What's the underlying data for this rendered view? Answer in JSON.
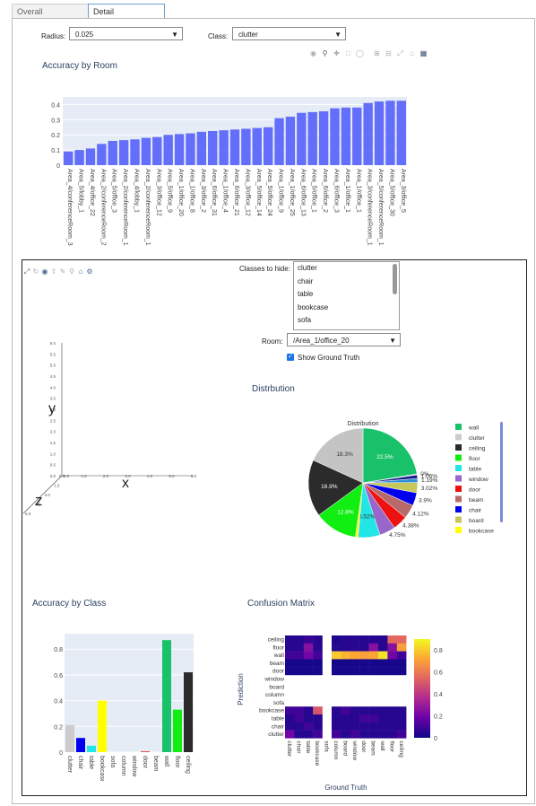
{
  "tabs": [
    {
      "label": "Overall"
    },
    {
      "label": "Detail"
    }
  ],
  "controls": {
    "radius_label": "Radius:",
    "radius_value": "0.025",
    "class_label": "Class:",
    "class_value": "clutter"
  },
  "room_chart": {
    "chart_data": {
      "type": "bar",
      "title": "Accuracy by Room",
      "categories": [
        "Area_4/conferenceRoom_3",
        "Area_5/lobby_1",
        "Area_4/office_22",
        "Area_2/conferenceRoom_2",
        "Area_5/office_3",
        "Area_2/conferenceRoom_1",
        "Area_4/lobby_1",
        "Area_2/conferenceRoom_1",
        "Area_3/office_12",
        "Area_5/office_9",
        "Area_1/office_20",
        "Area_1/office_8",
        "Area_3/office_2",
        "Area_6/office_31",
        "Area_1/office_4",
        "Area_6/office_21",
        "Area_3/office_12",
        "Area_5/office_14",
        "Area_5/office_24",
        "Area_1/office_9",
        "Area_1/office_25",
        "Area_6/office_13",
        "Area_5/office_1",
        "Area_6/office_2",
        "Area_6/office_3",
        "Area_1/office_1",
        "Area_1/office_1",
        "Area_3/conferenceRoom_1",
        "Area_5/conferenceRoom_1",
        "Area_5/office_30",
        "Area_3/office_5"
      ],
      "values": [
        0.09,
        0.1,
        0.11,
        0.14,
        0.16,
        0.165,
        0.17,
        0.18,
        0.185,
        0.2,
        0.205,
        0.21,
        0.22,
        0.225,
        0.23,
        0.235,
        0.24,
        0.245,
        0.25,
        0.31,
        0.32,
        0.345,
        0.35,
        0.355,
        0.375,
        0.38,
        0.38,
        0.41,
        0.42,
        0.425,
        0.425
      ],
      "ylim": [
        0,
        0.45
      ],
      "yticks": [
        "0",
        "0.1",
        "0.2",
        "0.3",
        "0.4"
      ],
      "color": "#636efa"
    }
  },
  "scene3d": {
    "y_ticks": [
      "0.0",
      "0.5",
      "1.0",
      "1.5",
      "2.0",
      "2.5",
      "3.0",
      "3.5",
      "4.0",
      "4.5",
      "5.0",
      "5.5",
      "6.0"
    ],
    "x_ticks": [
      "0.0",
      "0.5",
      "1.0",
      "1.5",
      "2.0",
      "2.5",
      "3.0",
      "3.5",
      "4.0",
      "4.5",
      "5.0",
      "5.5",
      "6.0"
    ],
    "z_ticks": [
      "0.0",
      "0.5",
      "1.0",
      "1.5",
      "2.0",
      "2.5",
      "3.0",
      "3.5",
      "4.0",
      "4.5",
      "5.0",
      "5.5",
      "6.0"
    ],
    "axis_x": "x",
    "axis_y": "y",
    "axis_z": "z"
  },
  "hide_panel": {
    "label": "Classes to hide:",
    "items": [
      "clutter",
      "chair",
      "table",
      "bookcase",
      "sofa"
    ]
  },
  "room_select": {
    "label": "Room:",
    "value": "/Area_1/office_20"
  },
  "ground_truth": {
    "label": "Show Ground Truth",
    "checked": true
  },
  "distribution_title": "Distrbution",
  "pie": {
    "chart_data": {
      "type": "pie",
      "title": "Distribution",
      "slices": [
        {
          "label": "wall",
          "value": 22.5,
          "color": "#19c26a",
          "text": "22.5%"
        },
        {
          "label": "clutter",
          "value": 0.3,
          "color": "#cccccc",
          "text": "0%"
        },
        {
          "label": "ceiling",
          "value": 1.06,
          "color": "#1a1a8c",
          "text": "1.06%"
        },
        {
          "label": "floor",
          "value": 1.19,
          "color": "#2e8fd9",
          "text": "1.19%"
        },
        {
          "label": "table",
          "value": 3.02,
          "color": "#c8c85a",
          "text": "3.02%"
        },
        {
          "label": "window",
          "value": 3.9,
          "color": "#0000ee",
          "text": "3.9%"
        },
        {
          "label": "door",
          "value": 4.12,
          "color": "#b86a6a",
          "text": "4.12%"
        },
        {
          "label": "beam",
          "value": 4.38,
          "color": "#ee1111",
          "text": "4.38%"
        },
        {
          "label": "chair",
          "value": 4.75,
          "color": "#9966cc",
          "text": "4.75%"
        },
        {
          "label": "board",
          "value": 6.52,
          "color": "#22e5e5",
          "text": "6.52%"
        },
        {
          "label": "bookcase",
          "value": 0.8,
          "color": "#ffff00",
          "text": ""
        },
        {
          "label": "sofa",
          "value": 12.8,
          "color": "#11ee11",
          "text": "12.8%"
        },
        {
          "label": "column",
          "value": 16.9,
          "color": "#2b2b2b",
          "text": "16.9%"
        },
        {
          "label": "other",
          "value": 18.3,
          "color": "#c4c4c4",
          "text": "18.3%"
        }
      ],
      "legend": [
        {
          "label": "wall",
          "color": "#19c26a"
        },
        {
          "label": "clutter",
          "color": "#cccccc"
        },
        {
          "label": "ceiling",
          "color": "#2b2b2b"
        },
        {
          "label": "floor",
          "color": "#11ee11"
        },
        {
          "label": "table",
          "color": "#22e5e5"
        },
        {
          "label": "window",
          "color": "#9966cc"
        },
        {
          "label": "door",
          "color": "#ee1111"
        },
        {
          "label": "beam",
          "color": "#b86a6a"
        },
        {
          "label": "chair",
          "color": "#0000ee"
        },
        {
          "label": "board",
          "color": "#c8c85a"
        },
        {
          "label": "bookcase",
          "color": "#ffff00"
        }
      ]
    }
  },
  "class_chart": {
    "chart_data": {
      "type": "bar",
      "title": "Accuracy by Class",
      "categories": [
        "clutter",
        "chair",
        "table",
        "bookcase",
        "sofa",
        "column",
        "window",
        "door",
        "beam",
        "wall",
        "floor",
        "ceiling"
      ],
      "values": [
        0.21,
        0.11,
        0.05,
        0.4,
        0,
        0,
        0,
        0.005,
        0,
        0.87,
        0.33,
        0.62
      ],
      "colors": [
        "#cccccc",
        "#0000ee",
        "#22e5e5",
        "#ffff00",
        "#11ee11",
        "#2b2b2b",
        "#9966cc",
        "#ee1111",
        "#b86a6a",
        "#19c26a",
        "#11ee11",
        "#2b2b2b"
      ],
      "ylim": [
        0,
        0.92
      ],
      "yticks": [
        "0",
        "0.2",
        "0.4",
        "0.6",
        "0.8"
      ]
    }
  },
  "confusion": {
    "chart_data": {
      "type": "heatmap",
      "title": "Confusion Matrix",
      "xlabel": "Ground Truth",
      "ylabel": "Prediction",
      "x": [
        "clutter",
        "chair",
        "table",
        "bookcase",
        "sofa",
        "column",
        "board",
        "window",
        "door",
        "beam",
        "wall",
        "floor",
        "ceiling"
      ],
      "y": [
        "ceiling",
        "floor",
        "wall",
        "beam",
        "door",
        "window",
        "board",
        "column",
        "sofa",
        "bookcase",
        "table",
        "chair",
        "clutter"
      ],
      "z": [
        [
          0.05,
          0.05,
          0.08,
          0.05,
          null,
          0.03,
          0.05,
          0.05,
          0.05,
          0.05,
          0.05,
          0.55,
          0.55
        ],
        [
          0.05,
          0.05,
          0.25,
          0.05,
          null,
          0.05,
          0.05,
          0.05,
          0.05,
          0.25,
          0.05,
          0.25,
          0.7
        ],
        [
          0.1,
          0.1,
          0.2,
          0.1,
          null,
          0.8,
          0.75,
          0.72,
          0.7,
          0.72,
          0.85,
          0.2,
          0.1
        ],
        [
          0.02,
          0.02,
          0.02,
          0.02,
          null,
          0.02,
          0.02,
          0.02,
          0.02,
          0.02,
          0.02,
          0.02,
          0.02
        ],
        [
          0.02,
          0.02,
          0.02,
          0.02,
          null,
          0.02,
          0.02,
          0.02,
          0.02,
          0.02,
          0.02,
          0.02,
          0.02
        ],
        [
          null,
          null,
          null,
          null,
          null,
          null,
          null,
          null,
          null,
          null,
          null,
          null,
          null
        ],
        [
          null,
          null,
          null,
          null,
          null,
          null,
          null,
          null,
          null,
          null,
          null,
          null,
          null
        ],
        [
          null,
          null,
          null,
          null,
          null,
          null,
          null,
          null,
          null,
          null,
          null,
          null,
          null
        ],
        [
          null,
          null,
          null,
          null,
          null,
          null,
          null,
          null,
          null,
          null,
          null,
          null,
          null
        ],
        [
          0.1,
          0.1,
          0.05,
          0.5,
          null,
          0.05,
          0.1,
          0.05,
          0.05,
          0.05,
          0.05,
          0.05,
          0.05
        ],
        [
          0.05,
          0.1,
          0.05,
          0.05,
          null,
          0.05,
          0.05,
          0.05,
          0.1,
          0.1,
          0.05,
          0.05,
          0.05
        ],
        [
          0.05,
          0.05,
          0.1,
          0.05,
          null,
          0.05,
          0.05,
          0.05,
          0.05,
          0.05,
          0.05,
          0.05,
          0.05
        ],
        [
          0.2,
          0.05,
          0.05,
          0.1,
          null,
          0.1,
          0.05,
          0.1,
          0.05,
          0.05,
          0.05,
          0.05,
          0.1
        ]
      ],
      "colorbar_ticks": [
        "0",
        "0.2",
        "0.4",
        "0.6",
        "0.8"
      ]
    }
  }
}
